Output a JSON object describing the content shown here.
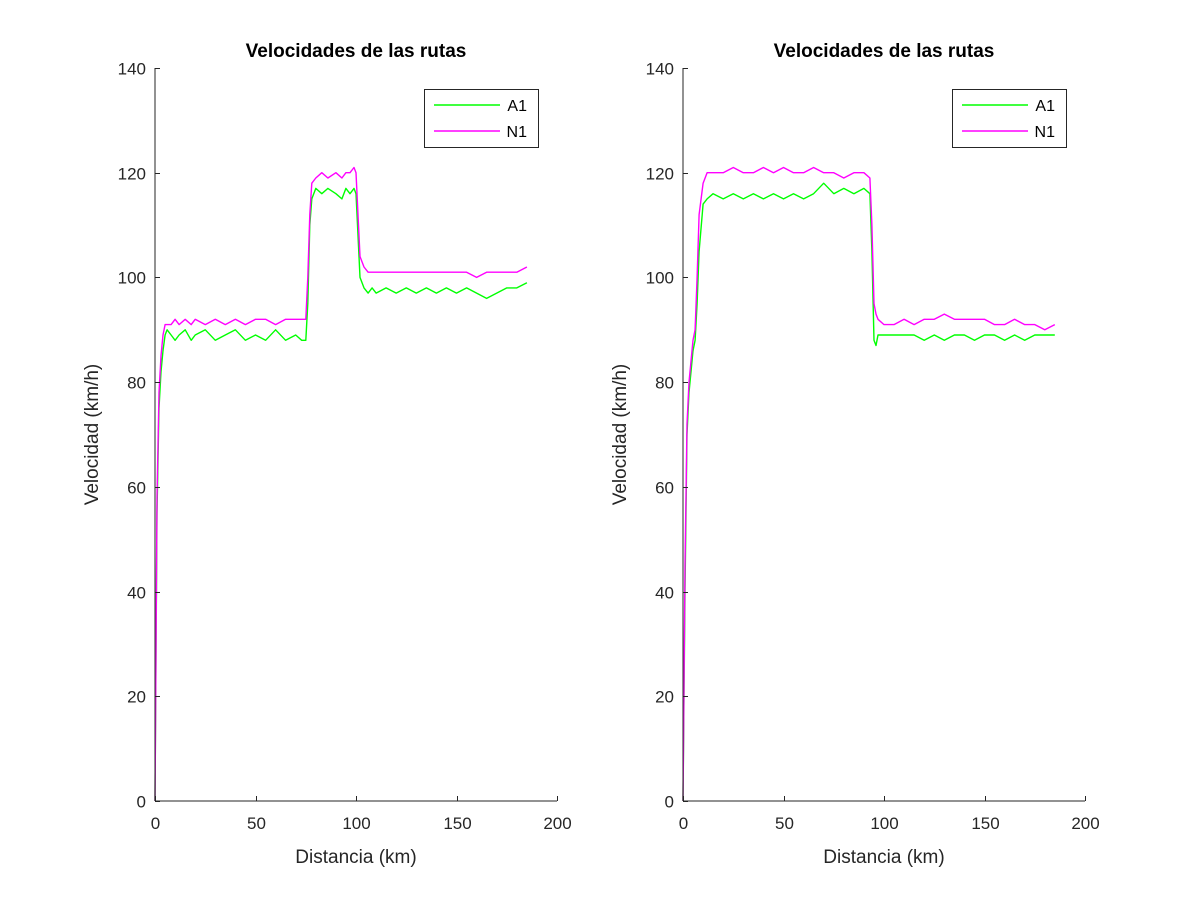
{
  "chart_data": [
    {
      "type": "line",
      "title": "Velocidades de las rutas",
      "xlabel": "Distancia (km)",
      "ylabel": "Velocidad (km/h)",
      "xlim": [
        0,
        200
      ],
      "ylim": [
        0,
        140
      ],
      "xticks": [
        0,
        50,
        100,
        150,
        200
      ],
      "yticks": [
        0,
        20,
        40,
        60,
        80,
        100,
        120,
        140
      ],
      "grid": false,
      "legend_position": "top-right",
      "series": [
        {
          "name": "A1",
          "color": "#00ff00",
          "x": [
            0,
            1,
            2,
            3,
            4,
            5,
            6,
            8,
            10,
            12,
            15,
            18,
            20,
            25,
            30,
            35,
            40,
            45,
            50,
            55,
            60,
            65,
            70,
            73,
            75,
            76,
            77,
            78,
            80,
            83,
            86,
            90,
            93,
            95,
            97,
            99,
            100,
            101,
            102,
            104,
            106,
            108,
            110,
            115,
            120,
            125,
            130,
            135,
            140,
            145,
            150,
            155,
            160,
            165,
            170,
            175,
            180,
            185
          ],
          "y": [
            0,
            55,
            75,
            82,
            86,
            89,
            90,
            89,
            88,
            89,
            90,
            88,
            89,
            90,
            88,
            89,
            90,
            88,
            89,
            88,
            90,
            88,
            89,
            88,
            88,
            95,
            110,
            115,
            117,
            116,
            117,
            116,
            115,
            117,
            116,
            117,
            116,
            108,
            100,
            98,
            97,
            98,
            97,
            98,
            97,
            98,
            97,
            98,
            97,
            98,
            97,
            98,
            97,
            96,
            97,
            98,
            98,
            99
          ]
        },
        {
          "name": "N1",
          "color": "#ff00ff",
          "x": [
            0,
            1,
            2,
            3,
            4,
            5,
            6,
            8,
            10,
            12,
            15,
            18,
            20,
            25,
            30,
            35,
            40,
            45,
            50,
            55,
            60,
            65,
            70,
            73,
            75,
            76,
            77,
            78,
            80,
            83,
            86,
            90,
            93,
            95,
            97,
            99,
            100,
            101,
            102,
            104,
            106,
            108,
            110,
            115,
            120,
            125,
            130,
            135,
            140,
            145,
            150,
            155,
            160,
            165,
            170,
            175,
            180,
            185
          ],
          "y": [
            0,
            58,
            78,
            85,
            89,
            91,
            91,
            91,
            92,
            91,
            92,
            91,
            92,
            91,
            92,
            91,
            92,
            91,
            92,
            92,
            91,
            92,
            92,
            92,
            92,
            100,
            112,
            118,
            119,
            120,
            119,
            120,
            119,
            120,
            120,
            121,
            120,
            112,
            104,
            102,
            101,
            101,
            101,
            101,
            101,
            101,
            101,
            101,
            101,
            101,
            101,
            101,
            100,
            101,
            101,
            101,
            101,
            102
          ]
        }
      ]
    },
    {
      "type": "line",
      "title": "Velocidades de las rutas",
      "xlabel": "Distancia (km)",
      "ylabel": "Velocidad (km/h)",
      "xlim": [
        0,
        200
      ],
      "ylim": [
        0,
        140
      ],
      "xticks": [
        0,
        50,
        100,
        150,
        200
      ],
      "yticks": [
        0,
        20,
        40,
        60,
        80,
        100,
        120,
        140
      ],
      "grid": false,
      "legend_position": "top-right",
      "series": [
        {
          "name": "A1",
          "color": "#00ff00",
          "x": [
            0,
            1,
            2,
            3,
            4,
            5,
            6,
            7,
            8,
            10,
            12,
            15,
            20,
            25,
            30,
            35,
            40,
            45,
            50,
            55,
            60,
            65,
            70,
            75,
            80,
            85,
            90,
            93,
            94,
            95,
            96,
            97,
            100,
            105,
            110,
            115,
            120,
            125,
            130,
            135,
            140,
            145,
            150,
            155,
            160,
            165,
            170,
            175,
            180,
            185
          ],
          "y": [
            0,
            40,
            70,
            78,
            82,
            86,
            88,
            95,
            105,
            114,
            115,
            116,
            115,
            116,
            115,
            116,
            115,
            116,
            115,
            116,
            115,
            116,
            118,
            116,
            117,
            116,
            117,
            116,
            105,
            88,
            87,
            89,
            89,
            89,
            89,
            89,
            88,
            89,
            88,
            89,
            89,
            88,
            89,
            89,
            88,
            89,
            88,
            89,
            89,
            89
          ]
        },
        {
          "name": "N1",
          "color": "#ff00ff",
          "x": [
            0,
            1,
            2,
            3,
            4,
            5,
            6,
            7,
            8,
            10,
            12,
            15,
            20,
            25,
            30,
            35,
            40,
            45,
            50,
            55,
            60,
            65,
            70,
            75,
            80,
            85,
            90,
            93,
            94,
            95,
            96,
            97,
            100,
            105,
            110,
            115,
            120,
            125,
            130,
            135,
            140,
            145,
            150,
            155,
            160,
            165,
            170,
            175,
            180,
            185
          ],
          "y": [
            0,
            45,
            72,
            80,
            84,
            88,
            90,
            100,
            112,
            118,
            120,
            120,
            120,
            121,
            120,
            120,
            121,
            120,
            121,
            120,
            120,
            121,
            120,
            120,
            119,
            120,
            120,
            119,
            110,
            95,
            93,
            92,
            91,
            91,
            92,
            91,
            92,
            92,
            93,
            92,
            92,
            92,
            92,
            91,
            91,
            92,
            91,
            91,
            90,
            91
          ]
        }
      ]
    }
  ]
}
